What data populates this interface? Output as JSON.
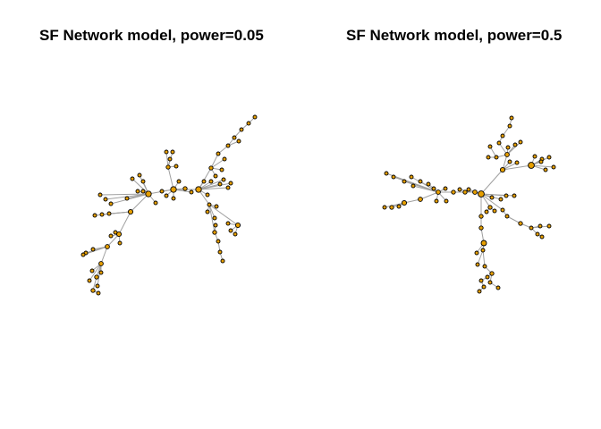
{
  "panels": [
    {
      "title": "SF Network model, power=0.05"
    },
    {
      "title": "SF Network model, power=0.5"
    }
  ],
  "colors": {
    "node_fill": "#E69F00",
    "node_stroke": "#000000",
    "edge": "#A0A0A0",
    "background": "#FFFFFF"
  }
}
